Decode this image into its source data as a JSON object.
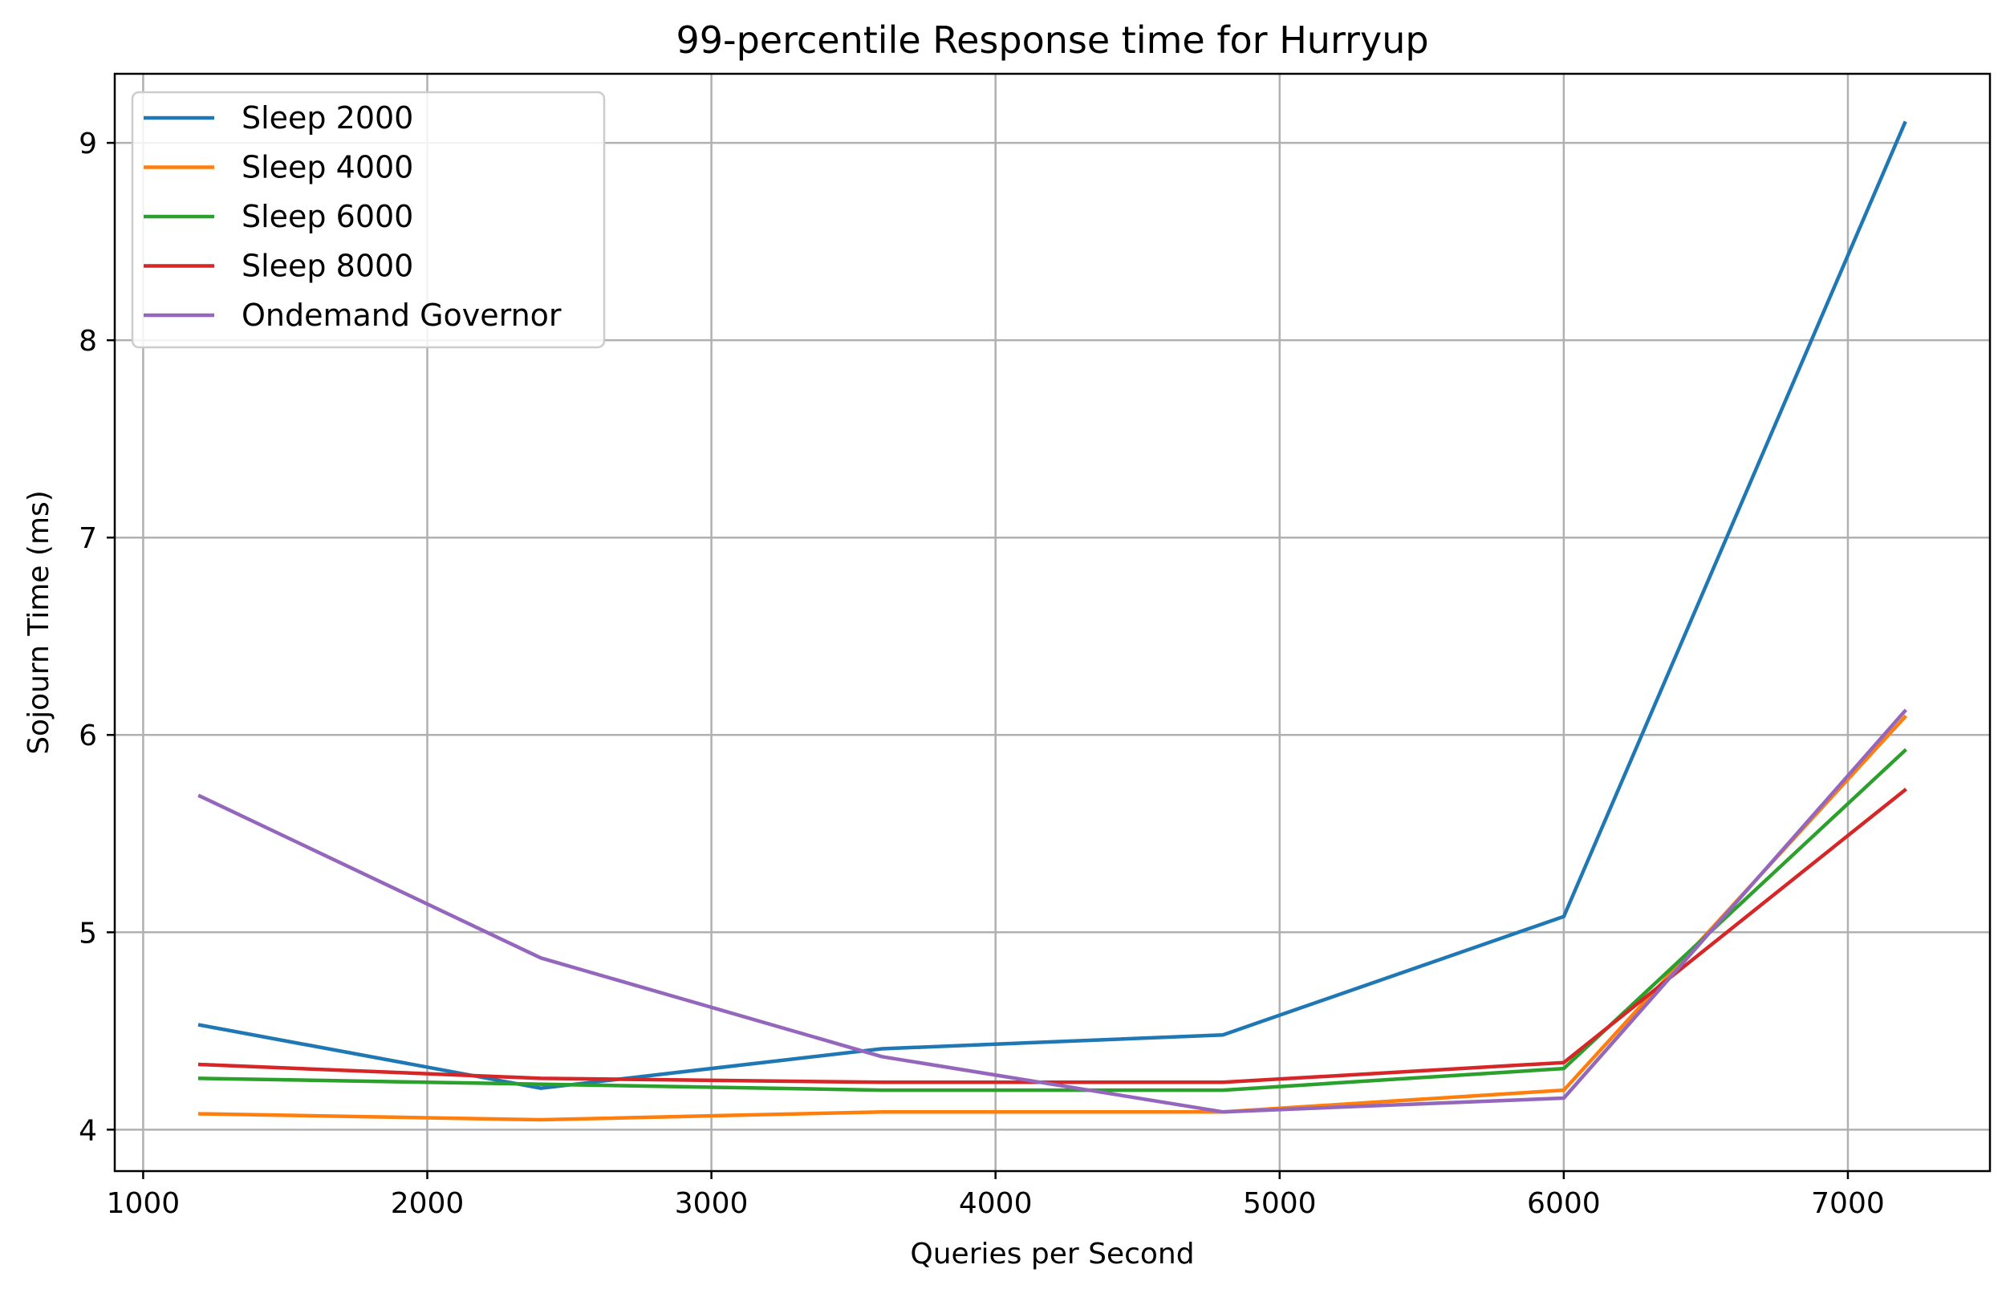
{
  "chart_data": {
    "type": "line",
    "title": "99-percentile Response time for Hurryup",
    "xlabel": "Queries per Second",
    "ylabel": "Sojourn Time (ms)",
    "x": [
      1200,
      2400,
      3600,
      4800,
      6000,
      7200
    ],
    "xlim": [
      900,
      7500
    ],
    "ylim": [
      3.79,
      9.35
    ],
    "xticks": [
      1000,
      2000,
      3000,
      4000,
      5000,
      6000,
      7000
    ],
    "yticks": [
      4,
      5,
      6,
      7,
      8,
      9
    ],
    "xtick_labels": [
      "1000",
      "2000",
      "3000",
      "4000",
      "5000",
      "6000",
      "7000"
    ],
    "ytick_labels": [
      "4",
      "5",
      "6",
      "7",
      "8",
      "9"
    ],
    "grid": true,
    "legend_position": "top-left",
    "series": [
      {
        "name": "Sleep 2000",
        "color": "#1f77b4",
        "values": [
          4.53,
          4.21,
          4.41,
          4.48,
          5.08,
          9.1
        ]
      },
      {
        "name": "Sleep 4000",
        "color": "#ff7f0e",
        "values": [
          4.08,
          4.05,
          4.09,
          4.09,
          4.2,
          6.09
        ]
      },
      {
        "name": "Sleep 6000",
        "color": "#2ca02c",
        "values": [
          4.26,
          4.23,
          4.2,
          4.2,
          4.31,
          5.92
        ]
      },
      {
        "name": "Sleep 8000",
        "color": "#d62728",
        "values": [
          4.33,
          4.26,
          4.24,
          4.24,
          4.34,
          5.72
        ]
      },
      {
        "name": "Ondemand Governor",
        "color": "#9467bd",
        "values": [
          5.69,
          4.87,
          4.37,
          4.09,
          4.16,
          6.12
        ]
      }
    ]
  }
}
